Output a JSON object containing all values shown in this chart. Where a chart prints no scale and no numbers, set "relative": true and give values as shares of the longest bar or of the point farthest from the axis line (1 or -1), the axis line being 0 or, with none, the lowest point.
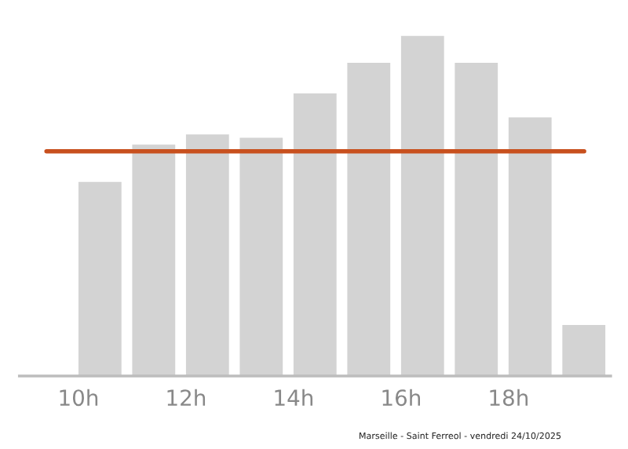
{
  "chart_data": {
    "type": "bar",
    "relative": true,
    "x": [
      10.4,
      11.4,
      12.4,
      13.4,
      14.4,
      15.4,
      16.4,
      17.4,
      18.4,
      19.4
    ],
    "values": [
      0.57,
      0.68,
      0.71,
      0.7,
      0.83,
      0.92,
      1,
      0.92,
      0.76,
      0.15
    ],
    "color": "#d3d3d3",
    "xlim": [
      8.9,
      19.9
    ],
    "xticks": [
      {
        "value": 10,
        "label": "10h"
      },
      {
        "value": 12,
        "label": "12h"
      },
      {
        "value": 14,
        "label": "14h"
      },
      {
        "value": 16,
        "label": "16h"
      },
      {
        "value": 18,
        "label": "18h"
      }
    ],
    "ref_lines": [
      {
        "axis": "y",
        "value": 0.66,
        "color": "#c8501e"
      }
    ],
    "annotations": [
      "Marseille - Saint Ferreol - vendredi 24/10/2025"
    ],
    "grid": false,
    "legend": false
  }
}
